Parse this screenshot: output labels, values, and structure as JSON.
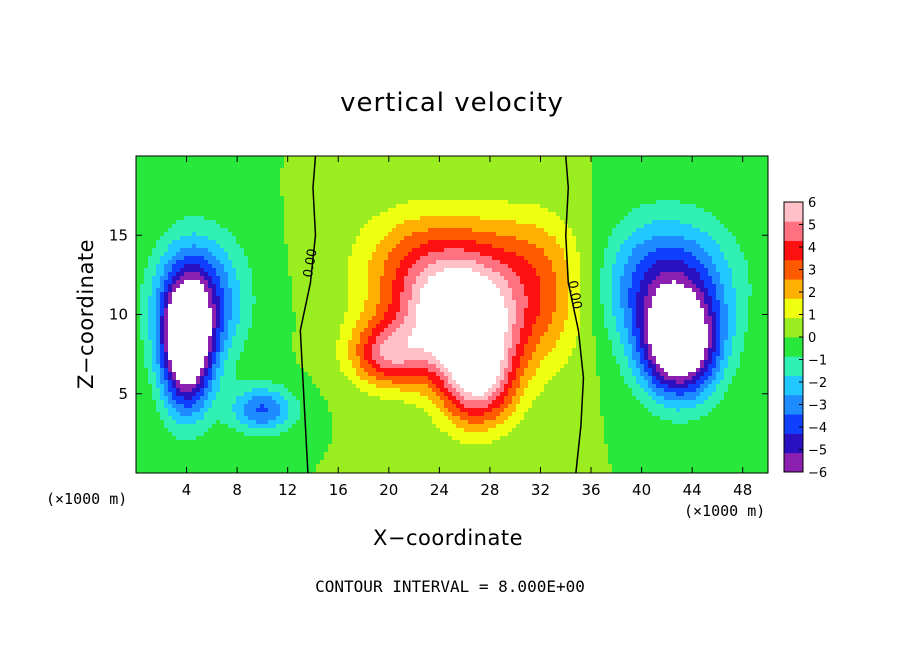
{
  "chart_data": {
    "type": "heatmap",
    "title": "vertical velocity",
    "xlabel": "X−coordinate",
    "ylabel": "Z−coordinate",
    "x_unit": "(×1000 m)",
    "xlim": [
      0,
      50
    ],
    "ylim": [
      0,
      20
    ],
    "x_ticks": [
      4,
      8,
      12,
      16,
      20,
      24,
      28,
      32,
      36,
      40,
      44,
      48
    ],
    "y_ticks": [
      5,
      10,
      15
    ],
    "colorbar": {
      "min": -6,
      "max": 6,
      "ticks": [
        6,
        5,
        4,
        3,
        2,
        1,
        0,
        -1,
        -2,
        -3,
        -4,
        -5,
        -6
      ],
      "tick_labels": [
        "6",
        "5",
        "4",
        "3",
        "2",
        "1",
        "0",
        "−1",
        "−2",
        "−3",
        "−4",
        "−5",
        "−6"
      ],
      "colors": [
        "#8a1fb0",
        "#2a10c0",
        "#1040ff",
        "#1e8cff",
        "#20c8ff",
        "#30f0b4",
        "#28e83c",
        "#9aee20",
        "#f0ff10",
        "#ffb000",
        "#ff5a00",
        "#ff1010",
        "#ff7080",
        "#ffc0c8"
      ]
    },
    "contour_interval_note": "CONTOUR INTERVAL = 8.000E+00",
    "contour_labels": [
      "0.00",
      "0.00"
    ],
    "features": [
      {
        "kind": "updraft",
        "x": 26,
        "z": 10,
        "peak": 7,
        "sx": 4.0,
        "sz": 3.2
      },
      {
        "kind": "updraft",
        "x": 27,
        "z": 6,
        "peak": 6,
        "sx": 3.0,
        "sz": 3.0
      },
      {
        "kind": "updraft",
        "x": 20,
        "z": 7.5,
        "peak": 4,
        "sx": 3.0,
        "sz": 2.0
      },
      {
        "kind": "updraft",
        "x": 22,
        "z": 11,
        "peak": 2.5,
        "sx": 4.5,
        "sz": 4.5
      },
      {
        "kind": "updraft",
        "x": 32,
        "z": 11,
        "peak": 2.5,
        "sx": 4.0,
        "sz": 4.5
      },
      {
        "kind": "updraft",
        "x": 26,
        "z": 14,
        "peak": 2.0,
        "sx": 7.0,
        "sz": 3.0
      },
      {
        "kind": "downdraft",
        "x": 4,
        "z": 8,
        "peak": -8,
        "sx": 2.0,
        "sz": 4.0
      },
      {
        "kind": "downdraft",
        "x": 5,
        "z": 11,
        "peak": -4,
        "sx": 3.5,
        "sz": 4.0
      },
      {
        "kind": "downdraft",
        "x": 43,
        "z": 8,
        "peak": -8,
        "sx": 3.0,
        "sz": 3.2
      },
      {
        "kind": "downdraft",
        "x": 42,
        "z": 12,
        "peak": -4.5,
        "sx": 5.0,
        "sz": 4.0
      },
      {
        "kind": "downdraft",
        "x": 10,
        "z": 4.0,
        "peak": -3.5,
        "sx": 2.5,
        "sz": 1.5
      }
    ]
  }
}
